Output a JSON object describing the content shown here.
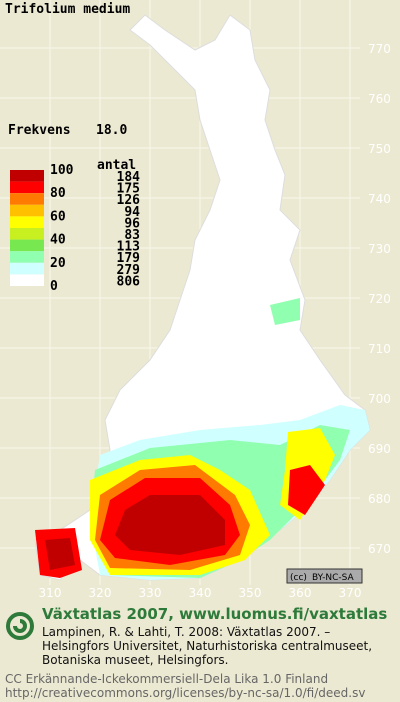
{
  "title": "Trifolium medium",
  "frequency": {
    "label": "Frekvens",
    "value": "18.0"
  },
  "legend": {
    "header": "antal",
    "levels": [
      "100",
      "80",
      "60",
      "40",
      "20",
      "0"
    ],
    "classes": [
      {
        "count": "184",
        "color": "#c00000"
      },
      {
        "count": "175",
        "color": "#ff0000"
      },
      {
        "count": "126",
        "color": "#ff7a00"
      },
      {
        "count": "94",
        "color": "#ffc000"
      },
      {
        "count": "96",
        "color": "#ffff00"
      },
      {
        "count": "83",
        "color": "#c8f020"
      },
      {
        "count": "113",
        "color": "#78e850"
      },
      {
        "count": "179",
        "color": "#90ffb0"
      },
      {
        "count": "279",
        "color": "#d0ffff"
      },
      {
        "count": "806",
        "color": "#ffffff"
      }
    ]
  },
  "grid": {
    "y_labels": [
      "770",
      "760",
      "750",
      "740",
      "730",
      "720",
      "710",
      "700",
      "690",
      "680",
      "670"
    ],
    "x_labels": [
      "310",
      "320",
      "330",
      "340",
      "350",
      "360",
      "370"
    ]
  },
  "license_badge": "BY-NC-SA",
  "footer": {
    "heading": "Växtatlas 2007, www.luomus.fi/vaxtatlas",
    "citation": [
      "Lampinen, R. & Lahti, T. 2008: Växtatlas 2007. –",
      "Helsingfors Universitet, Naturhistoriska centralmuseet,",
      "Botaniska museet, Helsingfors."
    ],
    "license": [
      "CC Erkännande-Ickekommersiell-Dela Lika 1.0 Finland",
      "http://creativecommons.org/licenses/by-nc-sa/1.0/fi/deed.sv"
    ]
  }
}
